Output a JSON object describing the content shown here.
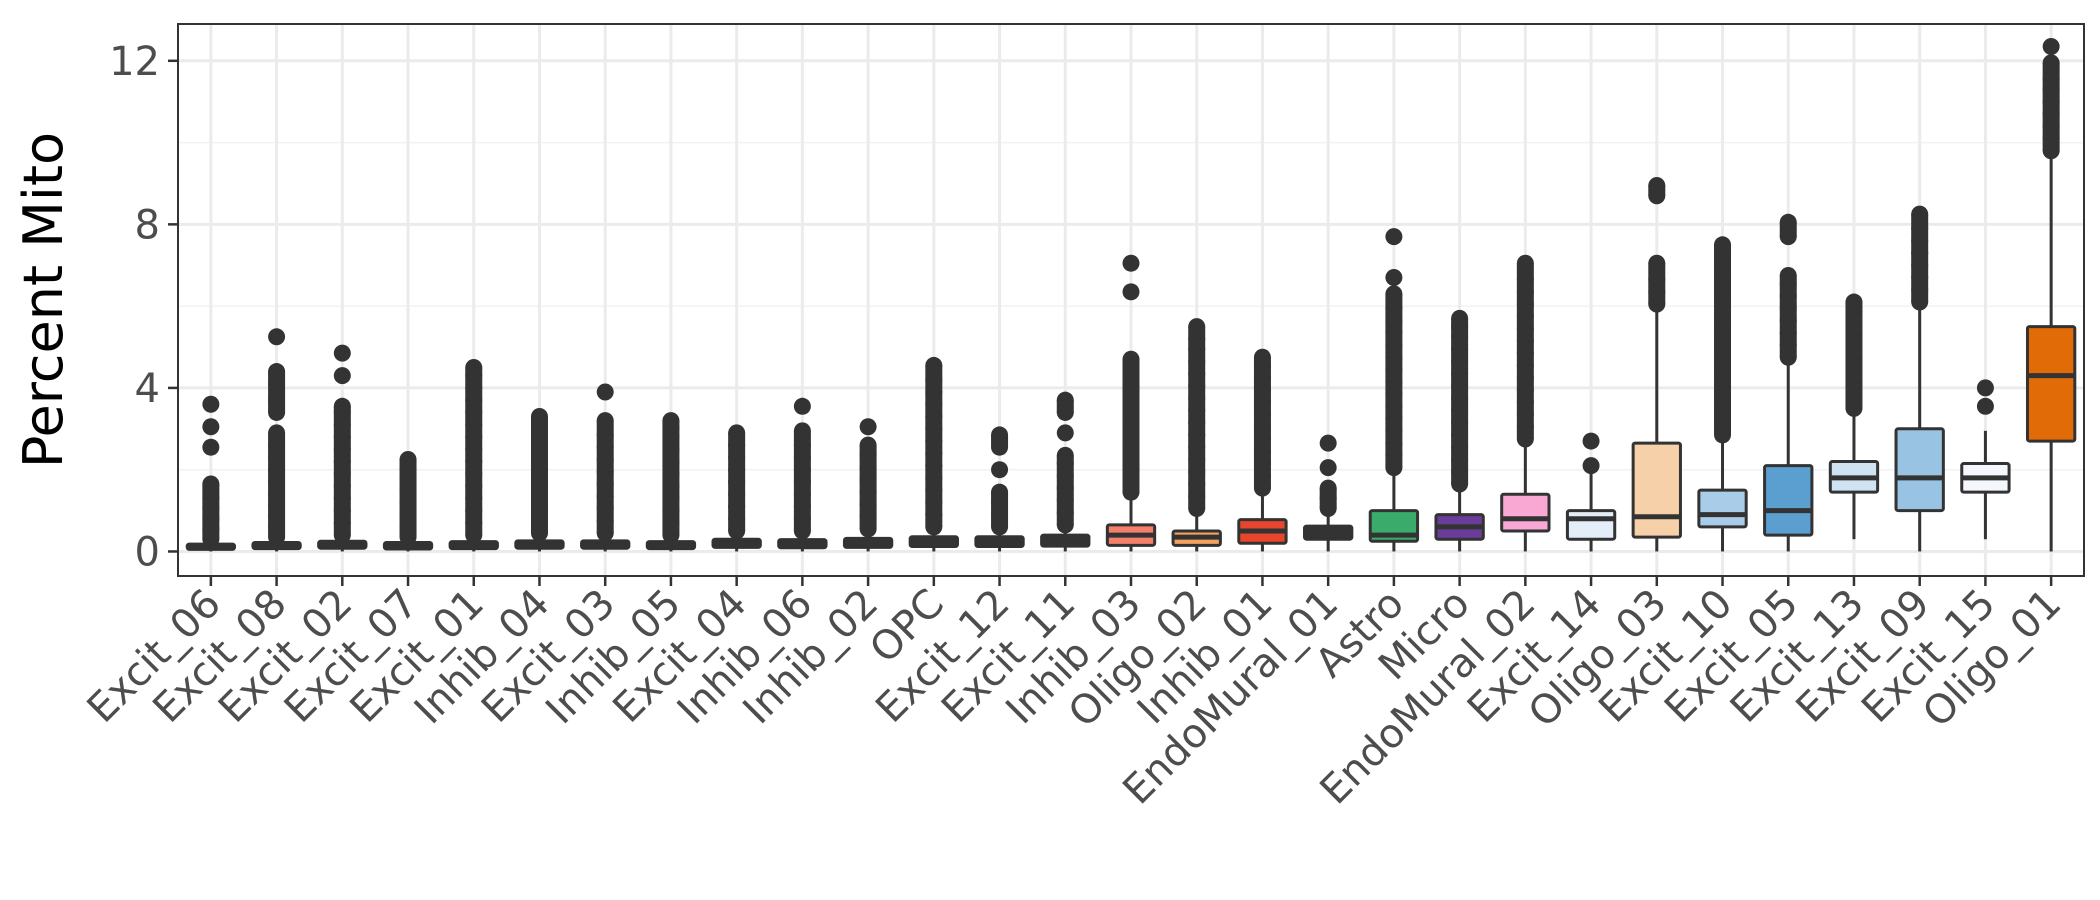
{
  "chart_data": {
    "type": "box",
    "title": "",
    "xlabel": "",
    "ylabel": "Percent Mito",
    "ylim": [
      -0.6,
      12.9
    ],
    "yticks": [
      0,
      4,
      8,
      12
    ],
    "grid": true,
    "legend": "none",
    "categories": [
      "Excit_06",
      "Excit_08",
      "Excit_02",
      "Excit_07",
      "Excit_01",
      "Inhib_04",
      "Excit_03",
      "Inhib_05",
      "Excit_04",
      "Inhib_06",
      "Inhib_02",
      "OPC",
      "Excit_12",
      "Excit_11",
      "Inhib_03",
      "Oligo_02",
      "Inhib_01",
      "EndoMural_01",
      "Astro",
      "Micro",
      "EndoMural_02",
      "Excit_14",
      "Oligo_03",
      "Excit_10",
      "Excit_05",
      "Excit_13",
      "Excit_09",
      "Excit_15",
      "Oligo_01"
    ],
    "boxes": [
      {
        "q1": 0.05,
        "median": 0.1,
        "q3": 0.18,
        "whisker_low": 0.0,
        "whisker_high": 0.2,
        "fill": "#333333",
        "outliers_max": 3.6
      },
      {
        "q1": 0.07,
        "median": 0.12,
        "q3": 0.22,
        "whisker_low": 0.0,
        "whisker_high": 0.3,
        "fill": "#333333",
        "outliers_max": 5.25
      },
      {
        "q1": 0.08,
        "median": 0.14,
        "q3": 0.25,
        "whisker_low": 0.0,
        "whisker_high": 0.35,
        "fill": "#333333",
        "outliers_max": 4.85
      },
      {
        "q1": 0.06,
        "median": 0.12,
        "q3": 0.22,
        "whisker_low": 0.0,
        "whisker_high": 0.3,
        "fill": "#333333",
        "outliers_max": 2.25
      },
      {
        "q1": 0.07,
        "median": 0.13,
        "q3": 0.24,
        "whisker_low": 0.0,
        "whisker_high": 0.35,
        "fill": "#333333",
        "outliers_max": 4.5
      },
      {
        "q1": 0.08,
        "median": 0.14,
        "q3": 0.26,
        "whisker_low": 0.0,
        "whisker_high": 0.4,
        "fill": "#333333",
        "outliers_max": 3.3
      },
      {
        "q1": 0.08,
        "median": 0.14,
        "q3": 0.26,
        "whisker_low": 0.0,
        "whisker_high": 0.4,
        "fill": "#333333",
        "outliers_max": 3.9
      },
      {
        "q1": 0.07,
        "median": 0.13,
        "q3": 0.24,
        "whisker_low": 0.0,
        "whisker_high": 0.35,
        "fill": "#333333",
        "outliers_max": 3.2
      },
      {
        "q1": 0.1,
        "median": 0.17,
        "q3": 0.3,
        "whisker_low": 0.0,
        "whisker_high": 0.45,
        "fill": "#333333",
        "outliers_max": 2.9
      },
      {
        "q1": 0.09,
        "median": 0.16,
        "q3": 0.29,
        "whisker_low": 0.0,
        "whisker_high": 0.45,
        "fill": "#333333",
        "outliers_max": 3.55
      },
      {
        "q1": 0.1,
        "median": 0.18,
        "q3": 0.32,
        "whisker_low": 0.0,
        "whisker_high": 0.5,
        "fill": "#333333",
        "outliers_max": 3.05
      },
      {
        "q1": 0.12,
        "median": 0.2,
        "q3": 0.36,
        "whisker_low": 0.0,
        "whisker_high": 0.55,
        "fill": "#333333",
        "outliers_max": 4.55
      },
      {
        "q1": 0.12,
        "median": 0.2,
        "q3": 0.36,
        "whisker_low": 0.0,
        "whisker_high": 0.55,
        "fill": "#333333",
        "outliers_max": 2.85
      },
      {
        "q1": 0.13,
        "median": 0.22,
        "q3": 0.4,
        "whisker_low": 0.0,
        "whisker_high": 0.6,
        "fill": "#333333",
        "outliers_max": 3.7
      },
      {
        "q1": 0.15,
        "median": 0.4,
        "q3": 0.65,
        "whisker_low": 0.0,
        "whisker_high": 1.4,
        "fill": "#f4806b",
        "outliers_max": 7.05
      },
      {
        "q1": 0.15,
        "median": 0.35,
        "q3": 0.5,
        "whisker_low": 0.0,
        "whisker_high": 1.0,
        "fill": "#f2a25c",
        "outliers_max": 5.5
      },
      {
        "q1": 0.2,
        "median": 0.5,
        "q3": 0.78,
        "whisker_low": 0.0,
        "whisker_high": 1.5,
        "fill": "#e8452c",
        "outliers_max": 4.75
      },
      {
        "q1": 0.3,
        "median": 0.45,
        "q3": 0.62,
        "whisker_low": 0.0,
        "whisker_high": 1.0,
        "fill": "#333333",
        "outliers_max": 2.65
      },
      {
        "q1": 0.25,
        "median": 0.4,
        "q3": 1.0,
        "whisker_low": 0.0,
        "whisker_high": 2.0,
        "fill": "#3aab6b",
        "outliers_max": 7.7
      },
      {
        "q1": 0.3,
        "median": 0.6,
        "q3": 0.9,
        "whisker_low": 0.0,
        "whisker_high": 1.6,
        "fill": "#6a3d9a",
        "outliers_max": 5.7
      },
      {
        "q1": 0.5,
        "median": 0.8,
        "q3": 1.4,
        "whisker_low": 0.0,
        "whisker_high": 2.7,
        "fill": "#f9a8d4",
        "outliers_max": 7.05
      },
      {
        "q1": 0.3,
        "median": 0.8,
        "q3": 1.0,
        "whisker_low": 0.0,
        "whisker_high": 2.0,
        "fill": "#e4eef8",
        "outliers_max": 2.7
      },
      {
        "q1": 0.35,
        "median": 0.85,
        "q3": 2.65,
        "whisker_low": 0.0,
        "whisker_high": 6.0,
        "fill": "#f5d0a9",
        "outliers_max": 8.95
      },
      {
        "q1": 0.6,
        "median": 0.9,
        "q3": 1.5,
        "whisker_low": 0.0,
        "whisker_high": 2.8,
        "fill": "#a9cde8",
        "outliers_max": 7.5
      },
      {
        "q1": 0.4,
        "median": 1.0,
        "q3": 2.1,
        "whisker_low": 0.0,
        "whisker_high": 4.7,
        "fill": "#5b9fd1",
        "outliers_max": 8.05
      },
      {
        "q1": 1.45,
        "median": 1.8,
        "q3": 2.2,
        "whisker_low": 0.3,
        "whisker_high": 3.4,
        "fill": "#cfe3f3",
        "outliers_max": 6.1
      },
      {
        "q1": 1.0,
        "median": 1.8,
        "q3": 3.0,
        "whisker_low": 0.0,
        "whisker_high": 6.0,
        "fill": "#98c3e3",
        "outliers_max": 8.25
      },
      {
        "q1": 1.45,
        "median": 1.8,
        "q3": 2.15,
        "whisker_low": 0.3,
        "whisker_high": 2.95,
        "fill": "#f4f8fc",
        "outliers_max": 4.0
      },
      {
        "q1": 2.7,
        "median": 4.3,
        "q3": 5.5,
        "whisker_low": 0.0,
        "whisker_high": 9.7,
        "fill": "#e16b06",
        "outliers_max": 12.35
      }
    ],
    "outliers": [
      [
        0.3,
        0.55,
        0.8,
        1.05,
        1.3,
        1.65,
        2.55,
        3.05,
        3.6
      ],
      [
        0.35,
        0.6,
        0.85,
        1.1,
        1.4,
        1.7,
        2.0,
        2.3,
        2.6,
        2.9,
        3.4,
        3.7,
        4.1,
        4.4,
        5.25
      ],
      [
        0.4,
        0.7,
        1.0,
        1.3,
        1.6,
        1.9,
        2.2,
        2.5,
        2.8,
        3.1,
        3.4,
        3.55,
        4.3,
        4.85
      ],
      [
        0.35,
        0.6,
        0.9,
        1.2,
        1.5,
        1.8,
        2.05,
        2.25
      ],
      [
        0.4,
        0.7,
        1.0,
        1.3,
        1.6,
        1.9,
        2.2,
        2.5,
        2.8,
        3.1,
        3.4,
        3.7,
        4.0,
        4.3,
        4.5
      ],
      [
        0.45,
        0.75,
        1.05,
        1.35,
        1.6,
        2.0,
        2.3,
        2.6,
        2.85,
        3.1,
        3.3
      ],
      [
        0.45,
        0.75,
        1.05,
        1.35,
        1.65,
        1.95,
        2.25,
        2.55,
        2.85,
        3.2,
        3.9
      ],
      [
        0.4,
        0.7,
        1.0,
        1.3,
        1.6,
        1.9,
        2.2,
        2.5,
        2.8,
        3.0,
        3.2
      ],
      [
        0.5,
        0.8,
        1.1,
        1.4,
        1.7,
        2.0,
        2.3,
        2.6,
        2.9
      ],
      [
        0.5,
        0.8,
        1.1,
        1.4,
        1.7,
        2.0,
        2.3,
        2.6,
        2.95,
        3.55
      ],
      [
        0.55,
        0.85,
        1.15,
        1.45,
        1.75,
        2.05,
        2.35,
        2.6,
        3.05
      ],
      [
        0.6,
        0.9,
        1.2,
        1.5,
        1.8,
        2.1,
        2.4,
        2.7,
        3.0,
        3.3,
        3.6,
        3.9,
        4.2,
        4.55
      ],
      [
        0.6,
        0.9,
        1.2,
        1.45,
        2.0,
        2.55,
        2.85
      ],
      [
        0.65,
        0.95,
        1.25,
        1.55,
        1.85,
        2.15,
        2.35,
        2.9,
        3.4,
        3.7
      ],
      [
        1.45,
        1.75,
        2.05,
        2.35,
        2.65,
        2.95,
        3.25,
        3.55,
        3.85,
        4.15,
        4.45,
        4.7,
        6.35,
        7.05
      ],
      [
        1.05,
        1.35,
        1.65,
        1.95,
        2.25,
        2.55,
        2.85,
        3.15,
        3.45,
        3.75,
        4.05,
        4.35,
        4.65,
        4.95,
        5.2,
        5.5
      ],
      [
        1.55,
        1.85,
        2.15,
        2.45,
        2.75,
        3.05,
        3.35,
        3.65,
        3.95,
        4.25,
        4.5,
        4.75
      ],
      [
        1.05,
        1.3,
        1.55,
        2.05,
        2.65
      ],
      [
        2.05,
        2.35,
        2.65,
        2.95,
        3.25,
        3.55,
        3.85,
        4.15,
        4.45,
        4.75,
        5.05,
        5.35,
        5.65,
        5.95,
        6.3,
        6.7,
        7.7
      ],
      [
        1.65,
        1.95,
        2.25,
        2.55,
        2.85,
        3.15,
        3.45,
        3.75,
        4.05,
        4.35,
        4.65,
        4.95,
        5.25,
        5.5,
        5.7
      ],
      [
        2.75,
        3.05,
        3.35,
        3.65,
        3.95,
        4.25,
        4.55,
        4.85,
        5.15,
        5.45,
        5.75,
        6.05,
        6.35,
        6.65,
        7.05
      ],
      [
        2.1,
        2.7
      ],
      [
        6.05,
        6.35,
        6.65,
        7.05,
        8.7,
        8.95
      ],
      [
        2.85,
        3.15,
        3.45,
        3.75,
        4.05,
        4.35,
        4.65,
        4.95,
        5.25,
        5.55,
        5.85,
        6.15,
        6.45,
        6.75,
        7.05,
        7.3,
        7.5
      ],
      [
        4.75,
        5.05,
        5.35,
        5.65,
        5.95,
        6.25,
        6.55,
        6.75,
        7.7,
        8.05
      ],
      [
        3.5,
        3.8,
        4.1,
        4.4,
        4.7,
        5.0,
        5.3,
        5.55,
        5.85,
        6.1
      ],
      [
        6.1,
        6.4,
        6.7,
        7.0,
        7.3,
        7.6,
        7.9,
        8.25
      ],
      [
        3.55,
        4.0
      ],
      [
        9.8,
        10.1,
        10.4,
        10.7,
        11.0,
        11.3,
        11.55,
        11.95,
        12.35
      ]
    ]
  }
}
